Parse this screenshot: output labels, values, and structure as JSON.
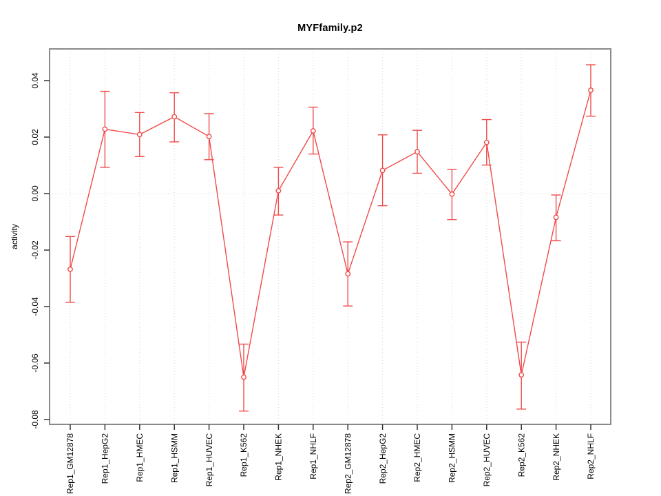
{
  "chart_data": {
    "type": "line",
    "title": "MYFfamily.p2",
    "xlabel": "",
    "ylabel": "activity",
    "legend_position": "none",
    "marker": "open-circle",
    "error_bars": true,
    "grid": {
      "vertical_dotted_per_category": true,
      "horizontal_dotted_at_zero": true
    },
    "ylim": [
      -0.082,
      0.0512
    ],
    "categories": [
      "Rep1_GM12878",
      "Rep1_HepG2",
      "Rep1_HMEC",
      "Rep1_HSMM",
      "Rep1_HUVEC",
      "Rep1_K562",
      "Rep1_NHEK",
      "Rep1_NHLF",
      "Rep2_GM12878",
      "Rep2_HepG2",
      "Rep2_HMEC",
      "Rep2_HSMM",
      "Rep2_HUVEC",
      "Rep2_K562",
      "Rep2_NHEK",
      "Rep2_NHLF"
    ],
    "series": [
      {
        "name": "activity",
        "values": [
          -0.0268,
          0.0228,
          0.0209,
          0.0272,
          0.0202,
          -0.065,
          0.001,
          0.0222,
          -0.0284,
          0.0082,
          0.0148,
          -0.0002,
          0.0181,
          -0.0642,
          -0.0084,
          0.0366
        ],
        "ci_low": [
          -0.0385,
          0.0093,
          0.0131,
          0.0183,
          0.012,
          -0.077,
          -0.0076,
          0.014,
          -0.0398,
          -0.0043,
          0.0072,
          -0.0092,
          0.0101,
          -0.0763,
          -0.0167,
          0.0274
        ],
        "ci_high": [
          -0.0152,
          0.0362,
          0.0287,
          0.0357,
          0.0283,
          -0.0533,
          0.0093,
          0.0306,
          -0.0171,
          0.0208,
          0.0224,
          0.0086,
          0.0262,
          -0.0526,
          -0.0005,
          0.0456
        ]
      }
    ],
    "yticks": [
      {
        "value": 0.04,
        "label": "0.04"
      },
      {
        "value": 0.02,
        "label": "0.02"
      },
      {
        "value": 0.0,
        "label": "0.00"
      },
      {
        "value": -0.02,
        "label": "-0.02"
      },
      {
        "value": -0.04,
        "label": "-0.04"
      },
      {
        "value": -0.06,
        "label": "-0.06"
      },
      {
        "value": -0.08,
        "label": "-0.08"
      }
    ],
    "colors": {
      "line": "#f04a4a",
      "marker_fill": "#ffffff",
      "frame": "#8a8a8a",
      "tick": "#333333",
      "grid": "#d9d9d9",
      "text": "#000000",
      "background": "#ffffff"
    }
  }
}
